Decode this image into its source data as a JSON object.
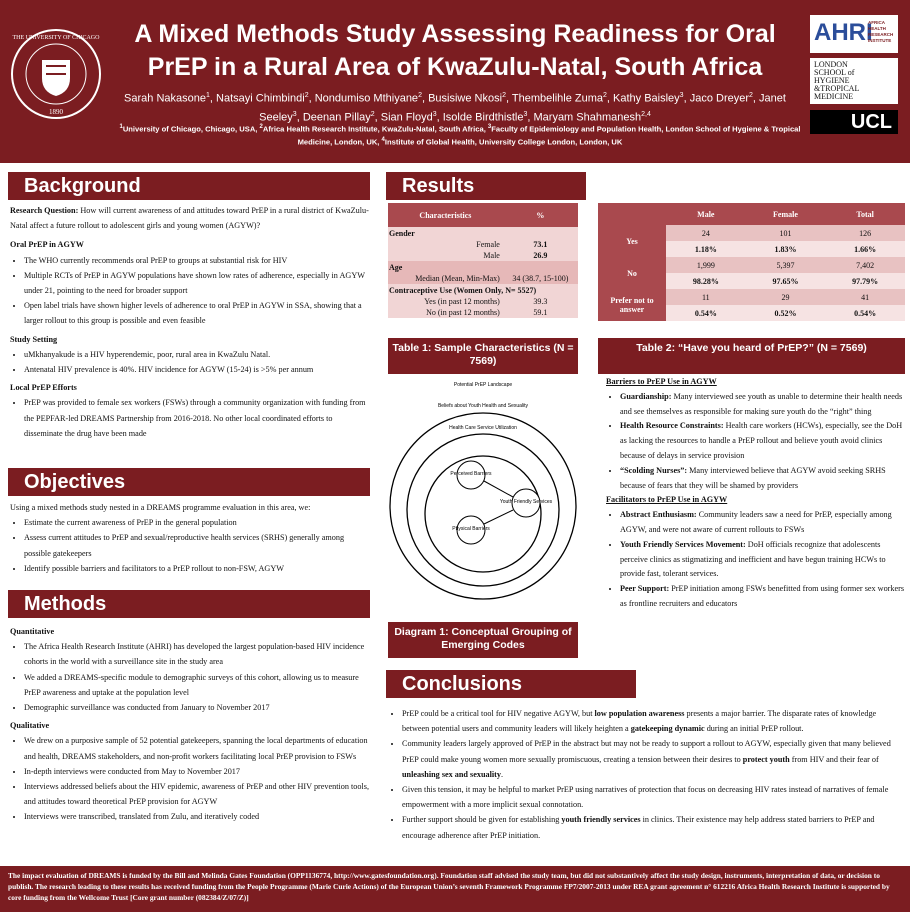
{
  "header": {
    "title": "A Mixed Methods Study Assessing Readiness for Oral PrEP in a Rural Area of KwaZulu-Natal, South Africa",
    "authors": [
      {
        "name": "Sarah Nakasone",
        "aff": "1"
      },
      {
        "name": "Natsayi Chimbindi",
        "aff": "2"
      },
      {
        "name": "Nondumiso Mthiyane",
        "aff": "2"
      },
      {
        "name": "Busisiwe Nkosi",
        "aff": "2"
      },
      {
        "name": "Thembelihle Zuma",
        "aff": "2"
      },
      {
        "name": "Kathy Baisley",
        "aff": "3"
      },
      {
        "name": "Jaco Dreyer",
        "aff": "2"
      },
      {
        "name": "Janet Seeley",
        "aff": "3"
      },
      {
        "name": "Deenan Pillay",
        "aff": "2"
      },
      {
        "name": "Sian Floyd",
        "aff": "3"
      },
      {
        "name": "Isolde Birdthistle",
        "aff": "3"
      },
      {
        "name": "Maryam Shahmanesh",
        "aff": "2,4"
      }
    ],
    "affiliations": [
      {
        "num": "1",
        "text": "University of Chicago, Chicago, USA, "
      },
      {
        "num": "2",
        "text": "Africa Health Research Institute, KwaZulu-Natal, South Africa, "
      },
      {
        "num": "3",
        "text": "Faculty of Epidemiology and Population Health, London School of Hygiene & Tropical Medicine, London, UK, "
      },
      {
        "num": "4",
        "text": "Institute of Global Health, University College London, London, UK"
      }
    ],
    "logos": {
      "seal_name": "THE UNIVERSITY OF CHICAGO",
      "seal_year": "1890",
      "ahri": "AHRI",
      "ahri_full": "AFRICA HEALTH RESEARCH INSTITUTE",
      "lshtm": [
        "LONDON",
        "SCHOOL of",
        "HYGIENE",
        "&TROPICAL",
        "MEDICINE"
      ],
      "ucl": "UCL"
    }
  },
  "background": {
    "heading": "Background",
    "question_label": "Research Question:",
    "question": "How will current awareness of and attitudes toward PrEP in a rural district of KwaZulu-Natal affect a future rollout to adolescent girls and young women (AGYW)?",
    "sections": [
      {
        "title": "Oral PrEP in AGYW",
        "items": [
          "The WHO currently recommends oral PrEP to groups at substantial risk for HIV",
          "Multiple RCTs of PrEP in AGYW populations have shown low rates of adherence, especially in AGYW under 21, pointing to the need for broader support",
          "Open label trials have shown higher levels of adherence to oral PrEP in AGYW in SSA, showing that a larger rollout to this group is possible and even feasible"
        ]
      },
      {
        "title": "Study Setting",
        "items": [
          "uMkhanyakude is a HIV hyperendemic, poor, rural area in KwaZulu Natal.",
          "Antenatal HIV prevalence is 40%. HIV incidence for AGYW (15-24) is >5% per annum"
        ]
      },
      {
        "title": "Local PrEP Efforts",
        "items": [
          "PrEP was provided to female sex workers (FSWs) through a community organization with funding from the PEPFAR-led DREAMS Partnership from 2016-2018. No other local coordinated efforts to disseminate the drug have been made"
        ]
      }
    ]
  },
  "objectives": {
    "heading": "Objectives",
    "intro": "Using a mixed methods study nested in a DREAMS programme evaluation in this area, we:",
    "items": [
      "Estimate the current awareness of PrEP in the general population",
      "Assess current attitudes to PrEP and sexual/reproductive health services (SRHS) generally among possible gatekeepers",
      "Identify possible barriers and facilitators to a PrEP rollout to non-FSW, AGYW"
    ]
  },
  "methods": {
    "heading": "Methods",
    "sections": [
      {
        "title": "Quantitative",
        "items": [
          "The Africa Health Research Institute (AHRI) has developed the largest population-based HIV incidence cohorts in the world with a surveillance site in the study area",
          "We added a DREAMS-specific module to demographic surveys of this cohort, allowing us to measure PrEP awareness and uptake at the population level",
          "Demographic surveillance was conducted from January to November 2017"
        ]
      },
      {
        "title": "Qualitative",
        "items": [
          "We drew on a purposive sample of 52 potential gatekeepers, spanning the local departments of education and health, DREAMS stakeholders, and non-profit workers facilitating local PrEP provision to FSWs",
          "In-depth interviews were conducted from May to November 2017",
          "Interviews addressed beliefs about the HIV epidemic, awareness of PrEP and other HIV prevention tools, and attitudes toward theoretical PrEP provision for AGYW",
          "Interviews were transcribed, translated from Zulu, and iteratively coded"
        ]
      }
    ]
  },
  "results": {
    "heading": "Results",
    "table1": {
      "columns": [
        "Characteristics",
        "%"
      ],
      "rows": [
        [
          "Gender"
        ],
        [
          "Female",
          73.1
        ],
        [
          "Male",
          26.9
        ],
        [
          "Age"
        ],
        [
          "Median (Mean, Min-Max)",
          "34 (38.7, 15-100)"
        ],
        [
          "Contraceptive Use (Women Only, N= 5527)"
        ],
        [
          "Yes (in past 12 months)",
          39.3
        ],
        [
          "No (in past 12 months)",
          59.1
        ]
      ],
      "caption": "Table 1: Sample Characteristics (N = 7569)"
    },
    "table2": {
      "columns": [
        "Male",
        "Female",
        "Total"
      ],
      "rows": [
        {
          "label": "Yes",
          "counts": [
            24,
            101,
            126
          ],
          "percents": [
            "1.18%",
            "1.83%",
            "1.66%"
          ]
        },
        {
          "label": "No",
          "counts": [
            "1,999",
            "5,397",
            "7,402"
          ],
          "percents": [
            "98.28%",
            "97.65%",
            "97.79%"
          ]
        },
        {
          "label": "Prefer not to answer",
          "counts": [
            11,
            29,
            41
          ],
          "percents": [
            "0.54%",
            "0.52%",
            "0.54%"
          ]
        }
      ],
      "caption": "Table 2: “Have you heard of PrEP?” (N = 7569)"
    },
    "diagram": {
      "landscape": "Potential PrEP Landscape",
      "beliefs": "Beliefs about Youth Health and Sexuality",
      "utilization": "Health Care Service Utilization",
      "perceived": "Perceived Barriers",
      "physical": "Physical Barriers",
      "youth": "Youth Friendly Services",
      "caption": "Diagram 1: Conceptual Grouping of Emerging Codes"
    },
    "barriers": {
      "title": "Barriers to PrEP Use in AGYW",
      "items": [
        {
          "label": "Guardianship:",
          "text": " Many interviewed see youth as unable to determine their health needs and see themselves as responsible for making sure youth do the “right” thing"
        },
        {
          "label": "Health Resource Constraints:",
          "text": " Health care workers (HCWs), especially, see the DoH as lacking the resources to handle a PrEP rollout and believe youth avoid clinics because of delays in service provision"
        },
        {
          "label": "“Scolding Nurses”:",
          "text": " Many interviewed believe that AGYW avoid seeking SRHS because of fears that they will be shamed by providers"
        }
      ]
    },
    "facilitators": {
      "title": "Facilitators to PrEP Use in AGYW",
      "items": [
        {
          "label": "Abstract Enthusiasm:",
          "text": " Community leaders saw a need for PrEP, especially among AGYW, and were not aware of current rollouts to FSWs"
        },
        {
          "label": "Youth Friendly Services Movement:",
          "text": " DoH officials recognize that adolescents perceive clinics as stigmatizing and inefficient and have begun training HCWs to provide fast, tolerant services."
        },
        {
          "label": "Peer Support:",
          "text": " PrEP initiation among FSWs benefitted from using former sex workers as frontline recruiters and educators"
        }
      ]
    }
  },
  "conclusions": {
    "heading": "Conclusions",
    "items": [
      {
        "parts": [
          "PrEP could be a critical tool for HIV negative AGYW, but ",
          "low population awareness",
          " presents a major barrier. The disparate rates of knowledge between potential users and community leaders will likely heighten a ",
          "gatekeeping dynamic",
          " during an initial PrEP rollout."
        ]
      },
      {
        "parts": [
          "Community leaders largely approved of PrEP in the abstract but may not be ready to support a rollout to AGYW, especially given that many believed PrEP could make young women more sexually promiscuous, creating a tension between their desires to ",
          "protect youth",
          " from HIV and their fear of ",
          "unleashing sex and sexuality",
          "."
        ]
      },
      {
        "parts": [
          "Given this tension, it may be helpful to market PrEP using narratives of protection that focus on decreasing HIV rates instead of narratives of female empowerment with a more implicit sexual connotation."
        ]
      },
      {
        "parts": [
          "Further support should be given for establishing ",
          "youth friendly services",
          " in clinics. Their existence may help address stated barriers to PrEP and encourage adherence after PrEP initiation."
        ]
      }
    ]
  },
  "footer": "The impact evaluation of DREAMS is funded by the Bill and Melinda Gates Foundation (OPP1136774, http://www.gatesfoundation.org). Foundation staff advised the study team, but did not substantively affect the study design, instruments, interpretation of data, or decision to publish. The research leading to these results has received funding from the People Programme (Marie Curie Actions) of the European Union’s seventh Framework Programme FP7/2007-2013 under REA grant agreement n° 612216 Africa Health Research Institute is supported by core funding from the Wellcome Trust [Core grant number (082384/Z/07/Z)]"
}
